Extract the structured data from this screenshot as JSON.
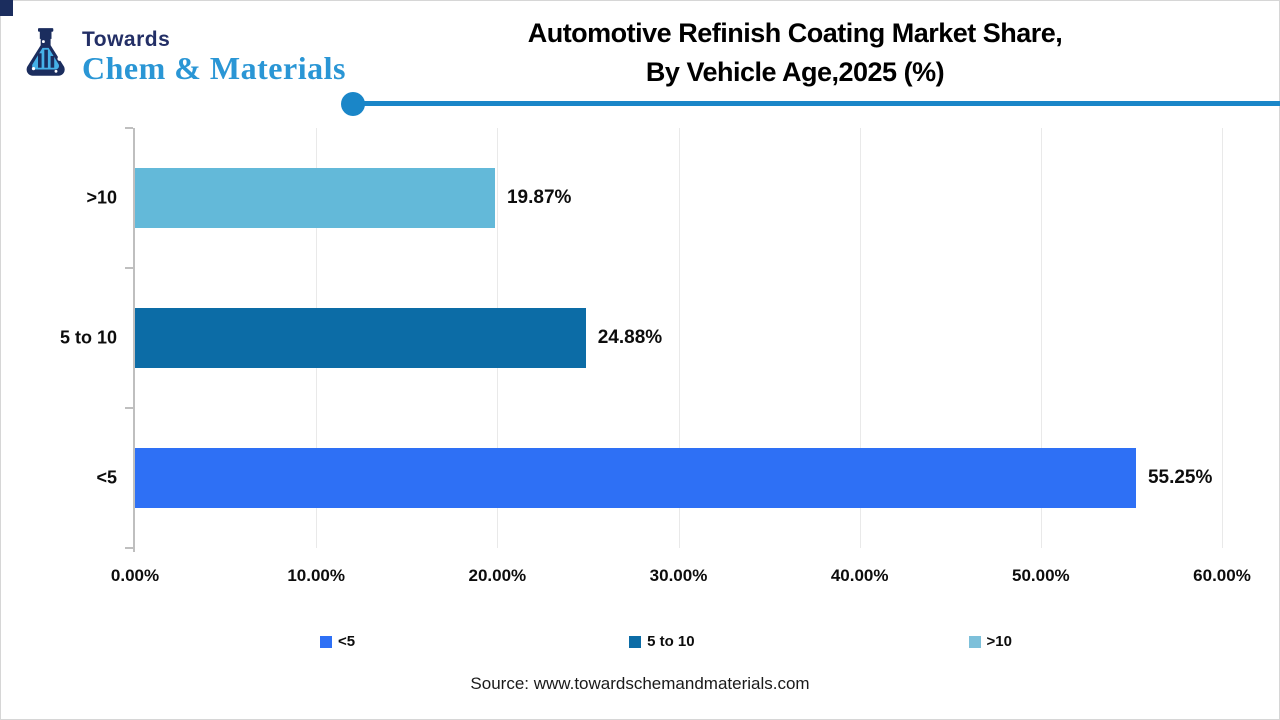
{
  "logo": {
    "top": "Towards",
    "bottom": "Chem & Materials"
  },
  "title": {
    "line1": "Automotive Refinish Coating Market Share,",
    "line2": "By Vehicle Age,2025 (%)"
  },
  "source": "Source: www.towardschemandmaterials.com",
  "colors": {
    "divider": "#1a86c8",
    "logo_navy": "#232f66",
    "logo_blue": "#2a96d5",
    "axis": "#bfbfbf",
    "gridline": "#e9e9e9"
  },
  "chart_data": {
    "type": "bar",
    "orientation": "horizontal",
    "title": "Automotive Refinish Coating Market Share, By Vehicle Age,2025 (%)",
    "categories": [
      ">10",
      "5 to 10",
      "<5"
    ],
    "values": [
      19.87,
      24.88,
      55.25
    ],
    "value_labels": [
      "19.87%",
      "24.88%",
      "55.25%"
    ],
    "bar_colors": [
      "#63b9d9",
      "#0c6ca6",
      "#2e70f5"
    ],
    "xlim": [
      0,
      60
    ],
    "x_ticks": [
      "0.00%",
      "10.00%",
      "20.00%",
      "30.00%",
      "40.00%",
      "50.00%",
      "60.00%"
    ],
    "x_tick_values": [
      0,
      10,
      20,
      30,
      40,
      50,
      60
    ],
    "grid": true,
    "legend_position": "bottom",
    "legend": [
      {
        "label": "<5",
        "color": "#2e70f5"
      },
      {
        "label": "5 to 10",
        "color": "#0c6ca6"
      },
      {
        "label": ">10",
        "color": "#7dc0da"
      }
    ]
  }
}
